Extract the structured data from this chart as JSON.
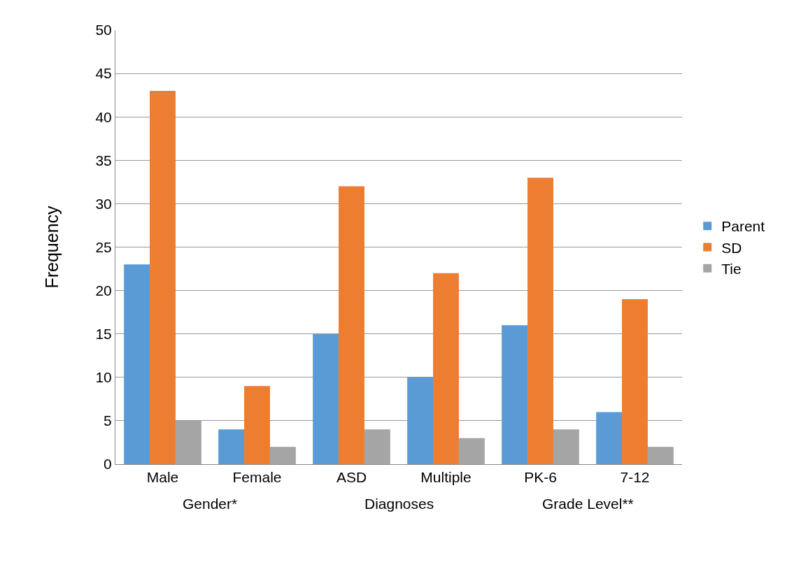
{
  "chart_data": {
    "type": "bar",
    "ylabel": "Frequency",
    "categories": [
      "Male",
      "Female",
      "ASD",
      "Multiple",
      "PK-6",
      "7-12"
    ],
    "series": [
      {
        "name": "Parent",
        "color": "#5b9bd5",
        "values": [
          23,
          4,
          15,
          10,
          16,
          6
        ]
      },
      {
        "name": "SD",
        "color": "#ed7d31",
        "values": [
          43,
          9,
          32,
          22,
          33,
          19
        ]
      },
      {
        "name": "Tie",
        "color": "#a5a5a5",
        "values": [
          5,
          2,
          4,
          3,
          4,
          2
        ]
      }
    ],
    "annotations": [
      "Gender*",
      "Diagnoses",
      "Grade Level**"
    ],
    "ylim": [
      0,
      50
    ],
    "yticks": [
      0,
      5,
      10,
      15,
      20,
      25,
      30,
      35,
      40,
      45,
      50
    ],
    "grid": "y",
    "legend": "right"
  }
}
